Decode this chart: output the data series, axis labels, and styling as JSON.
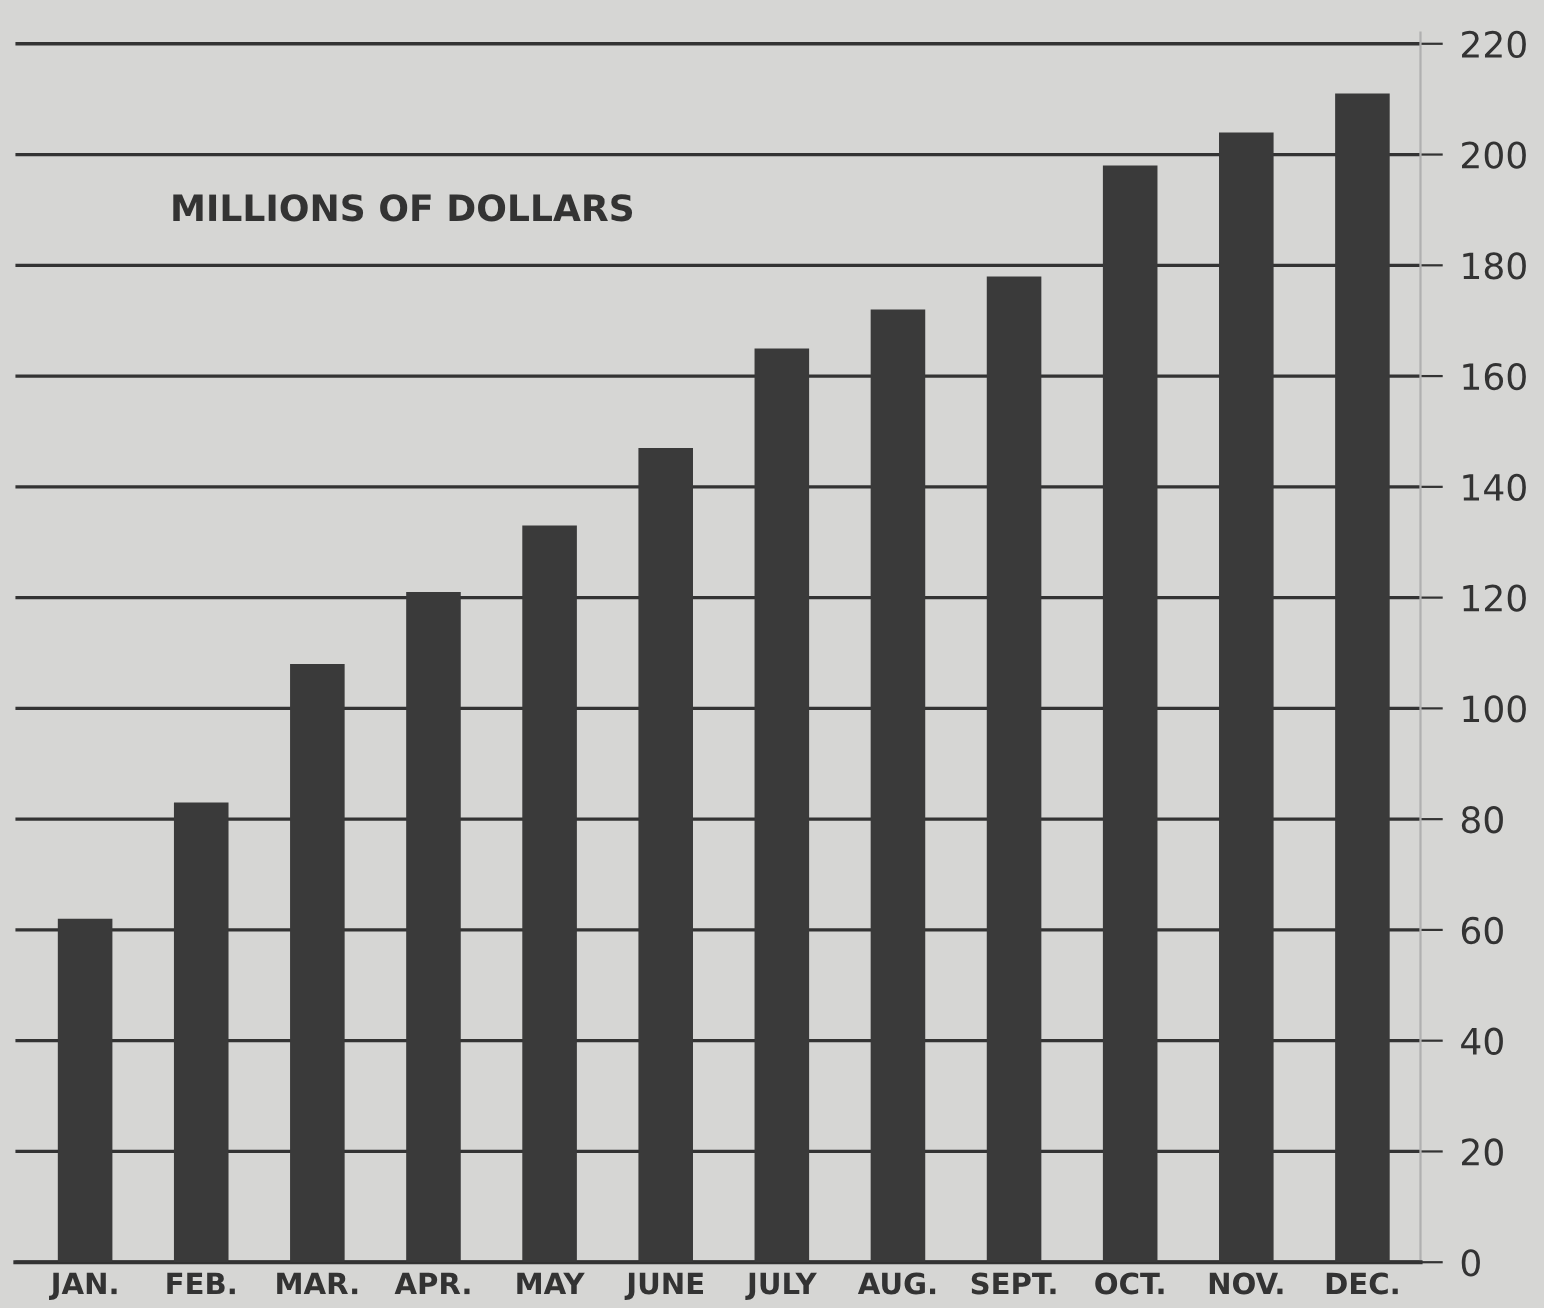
{
  "chart_data": {
    "type": "bar",
    "ylabel": "MILLIONS OF DOLLARS",
    "categories": [
      "JAN.",
      "FEB.",
      "MAR.",
      "APR.",
      "MAY",
      "JUNE",
      "JULY",
      "AUG.",
      "SEPT.",
      "OCT.",
      "NOV.",
      "DEC."
    ],
    "values": [
      62,
      83,
      108,
      121,
      133,
      147,
      165,
      172,
      178,
      198,
      204,
      211
    ],
    "color": "#3a3a3a",
    "ylim": [
      0,
      222
    ],
    "yticks": [
      0,
      20,
      40,
      60,
      80,
      100,
      120,
      140,
      160,
      180,
      200,
      220
    ],
    "grid": "y"
  }
}
